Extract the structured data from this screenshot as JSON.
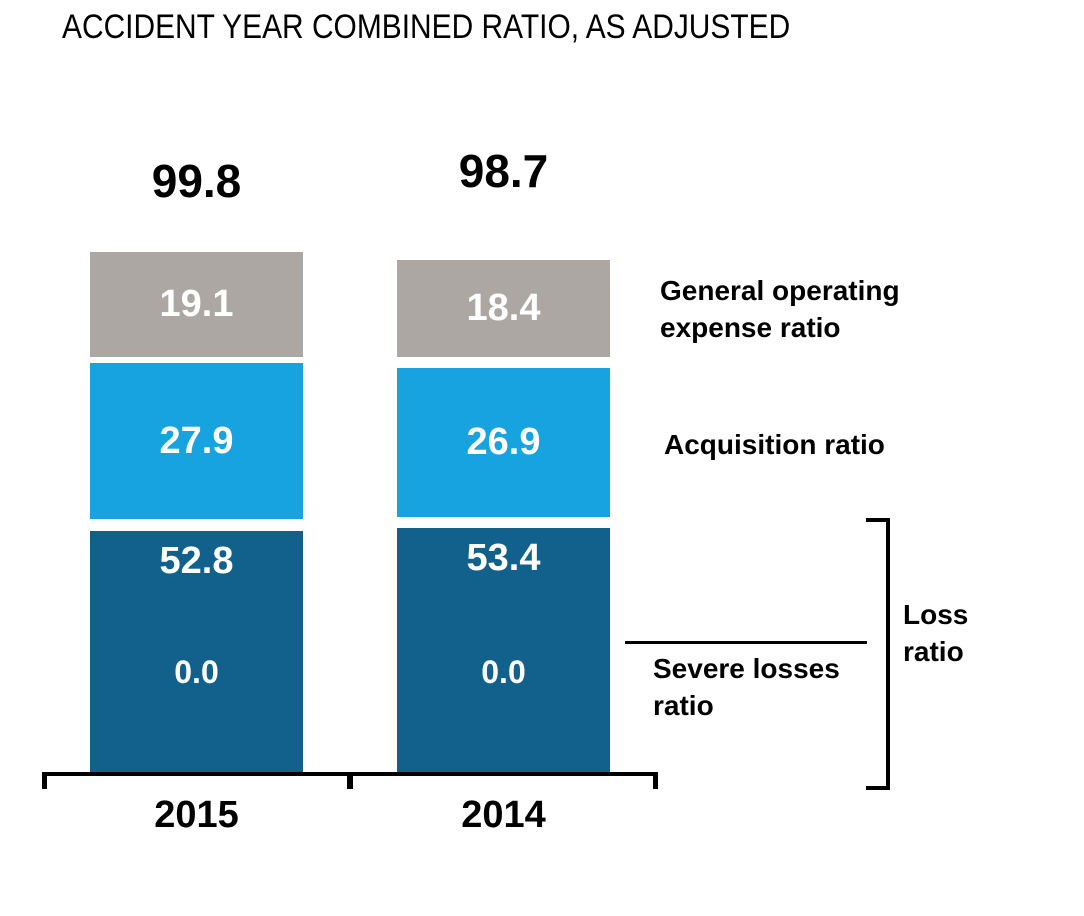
{
  "title": "ACCIDENT YEAR COMBINED RATIO, AS ADJUSTED",
  "chart_data": {
    "type": "bar",
    "stacked": true,
    "title": "ACCIDENT YEAR COMBINED RATIO, AS ADJUSTED",
    "categories": [
      "2015",
      "2014"
    ],
    "totals": [
      99.8,
      98.7
    ],
    "series": [
      {
        "name": "General operating expense ratio",
        "values": [
          19.1,
          18.4
        ],
        "color": "#ACA7A3"
      },
      {
        "name": "Acquisition ratio",
        "values": [
          27.9,
          26.9
        ],
        "color": "#17A2E0"
      },
      {
        "name": "Loss ratio",
        "values": [
          52.8,
          53.4
        ],
        "color": "#11618C"
      },
      {
        "name": "Severe losses ratio",
        "values": [
          0.0,
          0.0
        ]
      }
    ],
    "legend_position": "right",
    "grid": false,
    "y_axis_visible": false,
    "value_labels": "inside-segments-white"
  },
  "bars": [
    {
      "year": "2015",
      "total": "99.8",
      "general_operating": "19.1",
      "acquisition": "27.9",
      "loss": "52.8",
      "severe_losses": "0.0"
    },
    {
      "year": "2014",
      "total": "98.7",
      "general_operating": "18.4",
      "acquisition": "26.9",
      "loss": "53.4",
      "severe_losses": "0.0"
    }
  ],
  "labels": {
    "general_operating": "General operating\nexpense ratio",
    "acquisition": "Acquisition ratio",
    "severe_losses": "Severe losses\nratio",
    "loss": "Loss\nratio"
  },
  "colors": {
    "general_operating_segment": "#ACA7A3",
    "acquisition_segment": "#17A2E0",
    "loss_segment": "#11618C",
    "bar_value_text": "#FFFFFF",
    "text": "#000000",
    "background": "#FFFFFF"
  }
}
